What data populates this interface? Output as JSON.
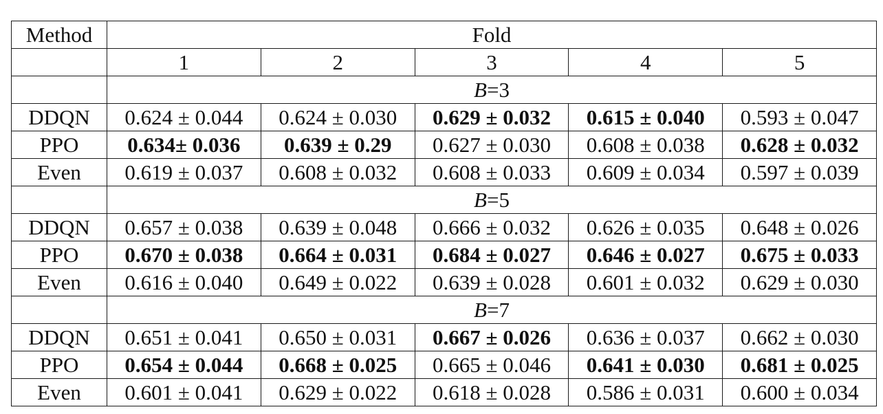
{
  "table": {
    "method_header": "Method",
    "fold_header": "Fold",
    "fold_numbers": [
      "1",
      "2",
      "3",
      "4",
      "5"
    ],
    "groups": [
      {
        "label_var": "B",
        "label_val": "=3",
        "rows": [
          {
            "method": "DDQN",
            "cells": [
              {
                "text": "0.624 ± 0.044",
                "bold": false
              },
              {
                "text": "0.624 ± 0.030",
                "bold": false
              },
              {
                "text": "0.629 ± 0.032",
                "bold": true
              },
              {
                "text": "0.615 ± 0.040",
                "bold": true
              },
              {
                "text": "0.593 ± 0.047",
                "bold": false
              }
            ]
          },
          {
            "method": "PPO",
            "cells": [
              {
                "text": "0.634± 0.036",
                "bold": true
              },
              {
                "text": "0.639 ± 0.29",
                "bold": true
              },
              {
                "text": "0.627 ± 0.030",
                "bold": false
              },
              {
                "text": "0.608 ± 0.038",
                "bold": false
              },
              {
                "text": "0.628 ± 0.032",
                "bold": true
              }
            ]
          },
          {
            "method": "Even",
            "cells": [
              {
                "text": "0.619 ± 0.037",
                "bold": false
              },
              {
                "text": "0.608 ± 0.032",
                "bold": false
              },
              {
                "text": "0.608 ± 0.033",
                "bold": false
              },
              {
                "text": "0.609 ± 0.034",
                "bold": false
              },
              {
                "text": "0.597 ± 0.039",
                "bold": false
              }
            ]
          }
        ]
      },
      {
        "label_var": "B",
        "label_val": "=5",
        "rows": [
          {
            "method": "DDQN",
            "cells": [
              {
                "text": "0.657 ± 0.038",
                "bold": false
              },
              {
                "text": "0.639 ± 0.048",
                "bold": false
              },
              {
                "text": "0.666 ± 0.032",
                "bold": false
              },
              {
                "text": "0.626 ± 0.035",
                "bold": false
              },
              {
                "text": "0.648 ± 0.026",
                "bold": false
              }
            ]
          },
          {
            "method": "PPO",
            "cells": [
              {
                "text": "0.670 ± 0.038",
                "bold": true
              },
              {
                "text": "0.664 ± 0.031",
                "bold": true
              },
              {
                "text": "0.684 ± 0.027",
                "bold": true
              },
              {
                "text": "0.646 ± 0.027",
                "bold": true
              },
              {
                "text": "0.675 ± 0.033",
                "bold": true
              }
            ]
          },
          {
            "method": "Even",
            "cells": [
              {
                "text": "0.616 ± 0.040",
                "bold": false
              },
              {
                "text": "0.649 ± 0.022",
                "bold": false
              },
              {
                "text": "0.639 ± 0.028",
                "bold": false
              },
              {
                "text": "0.601 ± 0.032",
                "bold": false
              },
              {
                "text": "0.629 ± 0.030",
                "bold": false
              }
            ]
          }
        ]
      },
      {
        "label_var": "B",
        "label_val": "=7",
        "rows": [
          {
            "method": "DDQN",
            "cells": [
              {
                "text": "0.651 ± 0.041",
                "bold": false
              },
              {
                "text": "0.650 ± 0.031",
                "bold": false
              },
              {
                "text": "0.667 ± 0.026",
                "bold": true
              },
              {
                "text": "0.636 ± 0.037",
                "bold": false
              },
              {
                "text": "0.662 ± 0.030",
                "bold": false
              }
            ]
          },
          {
            "method": "PPO",
            "cells": [
              {
                "text": "0.654 ± 0.044",
                "bold": true
              },
              {
                "text": "0.668 ± 0.025",
                "bold": true
              },
              {
                "text": "0.665 ± 0.046",
                "bold": false
              },
              {
                "text": "0.641 ± 0.030",
                "bold": true
              },
              {
                "text": "0.681 ± 0.025",
                "bold": true
              }
            ]
          },
          {
            "method": "Even",
            "cells": [
              {
                "text": "0.601 ± 0.041",
                "bold": false
              },
              {
                "text": "0.629 ± 0.022",
                "bold": false
              },
              {
                "text": "0.618 ± 0.028",
                "bold": false
              },
              {
                "text": "0.586 ± 0.031",
                "bold": false
              },
              {
                "text": "0.600 ± 0.034",
                "bold": false
              }
            ]
          }
        ]
      }
    ]
  }
}
